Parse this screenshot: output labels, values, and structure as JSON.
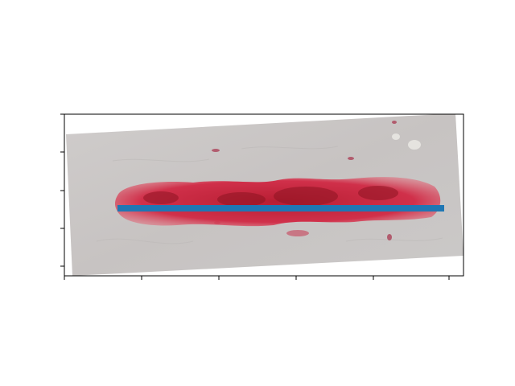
{
  "figure": {
    "kind": "photo with plotted line overlay",
    "x_tick_count": 6,
    "y_tick_count": 5,
    "tick_labels_visible": false,
    "overlay_line_color": "#1f77b4",
    "photo_colors": {
      "background": "#c9c6c5",
      "wound": "#c8283c",
      "wound_dark": "#8e1422",
      "axes_frame": "#000000"
    }
  }
}
